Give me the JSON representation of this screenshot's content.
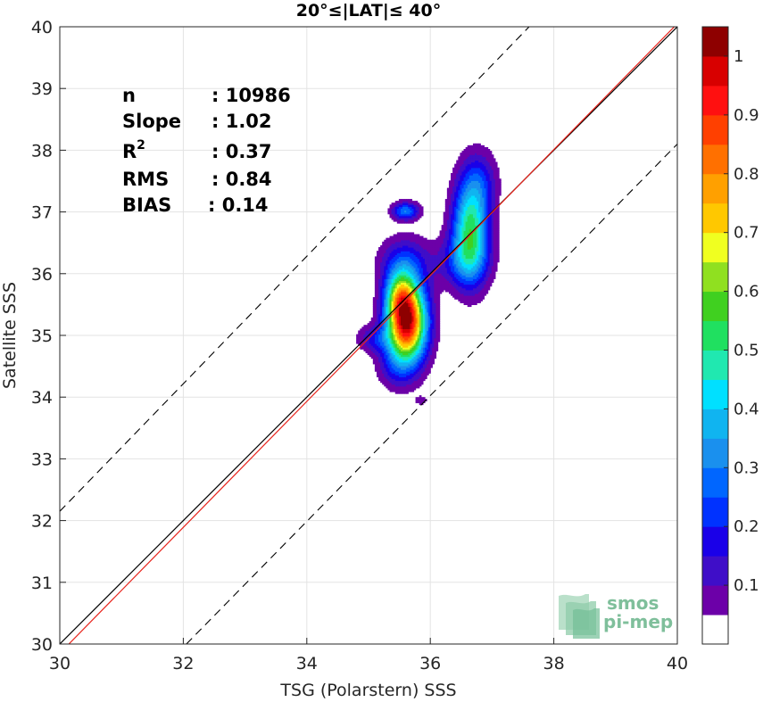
{
  "chart_data": {
    "type": "heatmap",
    "title": "20°≤|LAT|≤ 40°",
    "xlabel": "TSG (Polarstern) SSS",
    "ylabel": "Satellite SSS",
    "xlim": [
      30,
      40
    ],
    "ylim": [
      30,
      40
    ],
    "xticks": [
      "30",
      "32",
      "34",
      "36",
      "38",
      "40"
    ],
    "yticks": [
      "30",
      "31",
      "32",
      "33",
      "34",
      "35",
      "36",
      "37",
      "38",
      "39",
      "40"
    ],
    "grid": true,
    "stats": {
      "n": {
        "label": "n",
        "value": ": 10986"
      },
      "slope": {
        "label": "Slope",
        "value": ": 1.02"
      },
      "r2": {
        "label": "R",
        "sup": "2",
        "value": ": 0.37"
      },
      "rms": {
        "label": "RMS",
        "value": ": 0.84"
      },
      "bias": {
        "label": "BIAS",
        "value": ": 0.14"
      }
    },
    "lines": {
      "identity": {
        "from": [
          30,
          30
        ],
        "to": [
          40,
          40
        ],
        "color": "#000000",
        "style": "solid"
      },
      "regression": {
        "slope": 1.02,
        "intercept": -0.75,
        "color": "#e8231b",
        "style": "solid"
      },
      "upper_bound": {
        "from": [
          30,
          32.15
        ],
        "to": [
          37.6,
          40
        ],
        "color": "#000000",
        "style": "dashed"
      },
      "lower_bound": {
        "from": [
          32.05,
          30
        ],
        "to": [
          40,
          38.1
        ],
        "color": "#000000",
        "style": "dashed"
      }
    },
    "density_clusters": [
      {
        "x": 35.62,
        "y": 35.22,
        "sx": 0.22,
        "sy": 0.45,
        "w": 1.0
      },
      {
        "x": 35.5,
        "y": 35.65,
        "sx": 0.16,
        "sy": 0.28,
        "w": 0.3
      },
      {
        "x": 35.58,
        "y": 36.2,
        "sx": 0.28,
        "sy": 0.28,
        "w": 0.18
      },
      {
        "x": 35.6,
        "y": 37.02,
        "sx": 0.15,
        "sy": 0.1,
        "w": 0.3
      },
      {
        "x": 36.65,
        "y": 36.7,
        "sx": 0.2,
        "sy": 0.55,
        "w": 0.52
      },
      {
        "x": 36.5,
        "y": 36.2,
        "sx": 0.3,
        "sy": 0.28,
        "w": 0.15
      },
      {
        "x": 36.8,
        "y": 37.5,
        "sx": 0.2,
        "sy": 0.35,
        "w": 0.15
      },
      {
        "x": 35.1,
        "y": 34.95,
        "sx": 0.2,
        "sy": 0.15,
        "w": 0.15
      },
      {
        "x": 35.4,
        "y": 34.5,
        "sx": 0.2,
        "sy": 0.25,
        "w": 0.1
      },
      {
        "x": 35.85,
        "y": 33.95,
        "sx": 0.07,
        "sy": 0.05,
        "w": 0.08
      }
    ],
    "colorbar": {
      "levels": [
        0.05,
        0.1,
        0.15,
        0.2,
        0.25,
        0.3,
        0.35,
        0.4,
        0.45,
        0.5,
        0.55,
        0.6,
        0.65,
        0.7,
        0.75,
        0.8,
        0.85,
        0.9,
        0.95,
        1.0
      ],
      "colors": [
        "#ffffff",
        "#6c00a8",
        "#3f0ec8",
        "#1a00e8",
        "#0032ff",
        "#0066ff",
        "#1a90ee",
        "#10b4f0",
        "#00e0ff",
        "#20e8b0",
        "#20e060",
        "#40d020",
        "#90e020",
        "#f0ff20",
        "#ffc800",
        "#ffa000",
        "#ff7000",
        "#ff4000",
        "#ff1010",
        "#d80000",
        "#8e0000"
      ],
      "ticks": [
        "0.1",
        "0.2",
        "0.3",
        "0.4",
        "0.5",
        "0.6",
        "0.7",
        "0.8",
        "0.9",
        "1"
      ]
    },
    "logo": {
      "line1": "smos",
      "line2": "pi-mep"
    }
  }
}
